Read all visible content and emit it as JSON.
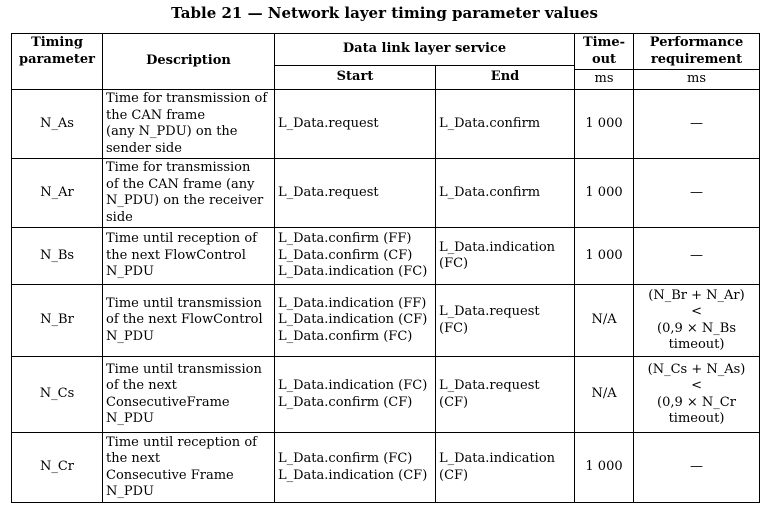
{
  "title": "Table 21 — Network layer timing parameter values",
  "headers": {
    "timing_parameter": [
      "Timing",
      "parameter"
    ],
    "description": "Description",
    "service": "Data link layer service",
    "start": "Start",
    "end": "End",
    "timeout": [
      "Time-",
      "out"
    ],
    "timeout_unit": "ms",
    "performance": [
      "Performance",
      "requirement"
    ],
    "performance_unit": "ms"
  },
  "rows": [
    {
      "param": "N_As",
      "description": [
        "Time for transmission of",
        "the CAN frame",
        "(any N_PDU) on the",
        "sender side"
      ],
      "start": [
        "L_Data.request"
      ],
      "end": [
        "L_Data.confirm"
      ],
      "timeout": "1 000",
      "performance": [
        "—"
      ]
    },
    {
      "param": "N_Ar",
      "description": [
        "Time for transmission",
        "of the CAN frame (any",
        "N_PDU) on the receiver",
        "side"
      ],
      "start": [
        "L_Data.request"
      ],
      "end": [
        "L_Data.confirm"
      ],
      "timeout": "1 000",
      "performance": [
        "—"
      ]
    },
    {
      "param": "N_Bs",
      "description": [
        "Time until reception of",
        "the next FlowControl",
        "N_PDU"
      ],
      "start": [
        "L_Data.confirm (FF)",
        "L_Data.confirm (CF)",
        "L_Data.indication (FC)"
      ],
      "end": [
        "L_Data.indication",
        "(FC)"
      ],
      "timeout": "1 000",
      "performance": [
        "—"
      ]
    },
    {
      "param": "N_Br",
      "description": [
        "Time until transmission",
        "of the next FlowControl",
        "N_PDU"
      ],
      "start": [
        "L_Data.indication (FF)",
        "L_Data.indication (CF)",
        "L_Data.confirm (FC)"
      ],
      "end": [
        "L_Data.request (FC)"
      ],
      "timeout": "N/A",
      "performance": [
        "(N_Br + N_Ar)",
        "<",
        "(0,9 × N_Bs",
        "timeout)"
      ]
    },
    {
      "param": "N_Cs",
      "description": [
        "Time until transmission",
        "of the next",
        "ConsecutiveFrame",
        "N_PDU"
      ],
      "start": [
        "L_Data.indication (FC)",
        "L_Data.confirm (CF)"
      ],
      "end": [
        "L_Data.request (CF)"
      ],
      "timeout": "N/A",
      "performance": [
        "(N_Cs + N_As)",
        "<",
        "(0,9 × N_Cr",
        "timeout)"
      ]
    },
    {
      "param": "N_Cr",
      "description": [
        "Time until reception of",
        "the next",
        "Consecutive Frame",
        "N_PDU"
      ],
      "start": [
        "L_Data.confirm (FC)",
        "L_Data.indication (CF)"
      ],
      "end": [
        "L_Data.indication",
        "(CF)"
      ],
      "timeout": "1 000",
      "performance": [
        "—"
      ]
    }
  ]
}
